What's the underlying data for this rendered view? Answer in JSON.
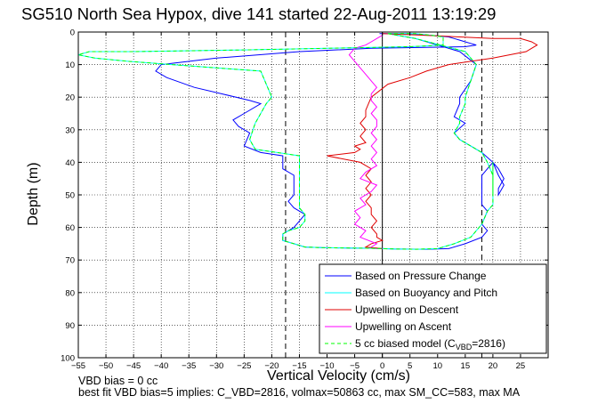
{
  "chart_data": {
    "type": "line",
    "title": "SG510 North Sea Hypox, dive 141 started 22-Aug-2011 13:19:29",
    "xlabel": "Vertical Velocity (cm/s)",
    "ylabel": "Depth (m)",
    "xlim": [
      -55,
      30
    ],
    "ylim": [
      0,
      100
    ],
    "y_reversed": true,
    "grid": true,
    "legend_position": "bottom-right",
    "xticks": [
      "-55",
      "-50",
      "-45",
      "-40",
      "-35",
      "-30",
      "-25",
      "-20",
      "-15",
      "-10",
      "-5",
      "0",
      "5",
      "10",
      "15",
      "20",
      "25"
    ],
    "yticks": [
      "0",
      "10",
      "20",
      "30",
      "40",
      "50",
      "60",
      "70",
      "80",
      "90",
      "100"
    ],
    "reference_lines_x": [
      -17.5,
      0,
      18
    ],
    "series": [
      {
        "name": "Based on Pressure Change",
        "color": "#0000ff",
        "x": [
          -0.5,
          5,
          9,
          12,
          13,
          14,
          15,
          16,
          17,
          15,
          -2,
          -15,
          -30,
          -40,
          -41,
          -39,
          -34,
          -29,
          -24,
          -22,
          -25,
          -27,
          -26,
          -24,
          -25,
          -22,
          -18,
          -18,
          -18,
          -16,
          -16,
          -16,
          -16,
          -17,
          -16,
          -14,
          -15,
          -16,
          -17,
          -18,
          -18,
          -16,
          -14,
          -11,
          -6,
          -2,
          0,
          2,
          8,
          12,
          15,
          18,
          19,
          18,
          19,
          18,
          18,
          18,
          18,
          19,
          20,
          21,
          22,
          21,
          21,
          22,
          21,
          20,
          18,
          16,
          14,
          13,
          15,
          13,
          14,
          14,
          16,
          17,
          14,
          6,
          1
        ],
        "y": [
          0.5,
          0.5,
          1,
          1.5,
          2,
          2.5,
          3,
          3.5,
          4,
          4.5,
          5,
          6,
          8,
          10,
          12,
          14,
          17,
          19,
          21,
          22,
          25,
          27,
          29,
          31,
          35,
          37,
          38,
          40,
          42,
          44,
          46,
          48,
          50,
          52,
          54,
          56,
          58,
          60,
          61,
          62,
          64,
          65,
          66,
          66.2,
          66.3,
          66.4,
          66.5,
          66.6,
          66.7,
          66.5,
          65,
          63,
          61,
          59,
          55,
          53,
          50,
          47,
          44,
          42,
          40,
          42,
          45,
          48,
          50,
          47,
          44,
          40,
          37,
          35,
          33,
          31,
          28,
          26,
          22,
          20,
          15,
          10,
          6,
          2,
          0.5
        ]
      },
      {
        "name": "Based on Buoyancy and Pitch",
        "color": "#00ffff",
        "x": [
          1,
          6,
          9,
          11,
          11,
          11,
          11,
          11,
          11,
          5,
          -10,
          -25,
          -45,
          -53,
          -55,
          -52,
          -46,
          -38,
          -30,
          -22,
          -20,
          -21,
          -22,
          -23,
          -24,
          -23,
          -19,
          -15,
          -15,
          -15,
          -15,
          -15,
          -15,
          -15,
          -15,
          -14,
          -14,
          -15,
          -17,
          -18,
          -18,
          -16,
          -14,
          -11,
          -6,
          -2,
          0,
          2,
          6,
          10,
          13,
          16,
          17,
          18,
          19,
          20,
          20,
          20,
          20,
          20,
          20,
          20,
          20,
          20,
          20,
          20,
          20,
          19,
          18,
          16,
          14,
          13,
          14,
          14,
          15,
          15,
          16,
          17,
          15,
          6,
          1
        ],
        "y": [
          0.5,
          0.5,
          1,
          1.5,
          2,
          2.5,
          3,
          3.5,
          4,
          4.5,
          5,
          5.5,
          6,
          6,
          7,
          8,
          9,
          10,
          11,
          12,
          20,
          22,
          25,
          28,
          33,
          36,
          37,
          38,
          42,
          45,
          47,
          48,
          50,
          52,
          54,
          56,
          58,
          60,
          61,
          62,
          64,
          65,
          66,
          66.2,
          66.3,
          66.4,
          66.5,
          66.6,
          66.7,
          66.5,
          65,
          63,
          61,
          59,
          55,
          53,
          50,
          47,
          44,
          42,
          40,
          42,
          45,
          48,
          50,
          47,
          44,
          40,
          37,
          35,
          33,
          31,
          28,
          26,
          22,
          20,
          15,
          10,
          6,
          2,
          0.5
        ]
      },
      {
        "name": "Upwelling on Descent",
        "color": "#e00000",
        "x": [
          0,
          8,
          14,
          20,
          25,
          27,
          28,
          27,
          26,
          20,
          12,
          8,
          5,
          1,
          -2,
          -3,
          -3,
          -4,
          -3,
          -4,
          -3,
          -5,
          -4,
          -5,
          -10,
          -4,
          -2,
          -3,
          -2,
          -3,
          -2,
          -3,
          -2,
          -2,
          -1,
          -2,
          -1,
          -1,
          0,
          -2,
          -3,
          0
        ],
        "y": [
          0.5,
          1,
          1.5,
          2,
          2,
          3,
          4,
          5,
          6,
          8,
          10,
          12,
          14,
          16,
          20,
          24,
          26,
          28,
          30,
          32,
          34,
          35,
          36,
          37,
          38,
          40,
          42,
          44,
          46,
          48,
          50,
          52,
          54,
          56,
          58,
          60,
          62,
          63,
          64,
          65,
          66,
          66.5
        ]
      },
      {
        "name": "Upwelling on Ascent",
        "color": "#ff00ff",
        "x": [
          -2,
          -1,
          -4,
          -3,
          -5,
          -4,
          -5,
          -3,
          -4,
          -2,
          -1,
          -4,
          -3,
          -1,
          -2,
          -1,
          -2,
          -1,
          -2,
          -1,
          -1,
          -2,
          -1,
          -2,
          -2,
          -1,
          -2,
          -3,
          -4,
          -5,
          -6,
          -5,
          -3,
          -2,
          -1,
          0
        ],
        "y": [
          66,
          65,
          63,
          61,
          59,
          57,
          55,
          53,
          51,
          49,
          47,
          45,
          43,
          41,
          39,
          37,
          35,
          33,
          31,
          29,
          27,
          25,
          23,
          21,
          19,
          17,
          15,
          13,
          11,
          9,
          7,
          5,
          4,
          3,
          2,
          1
        ]
      },
      {
        "name": "5 cc biased model (C_VBD=2816)",
        "legend_label_main": "5 cc biased model (C",
        "legend_label_sub": "VBD",
        "legend_label_tail": "=2816)",
        "color": "#00ff00",
        "dashed": true,
        "x": [
          1,
          6,
          9,
          11,
          11,
          11,
          11,
          11,
          11,
          5,
          -10,
          -25,
          -45,
          -53,
          -55,
          -52,
          -46,
          -38,
          -30,
          -22,
          -20,
          -21,
          -22,
          -23,
          -24,
          -23,
          -19,
          -15,
          -15,
          -15,
          -15,
          -15,
          -15,
          -15,
          -15,
          -14,
          -14,
          -15,
          -17,
          -18,
          -18,
          -16,
          -14,
          -11,
          -6,
          -2,
          0,
          2,
          6,
          10,
          13,
          16,
          17,
          18,
          19,
          20,
          20,
          20,
          20,
          20,
          20,
          20,
          20,
          20,
          20,
          20,
          20,
          19,
          18,
          16,
          14,
          13,
          14,
          14,
          15,
          15,
          16,
          17,
          15,
          6,
          1
        ],
        "y": [
          0.5,
          0.5,
          1,
          1.5,
          2,
          2.5,
          3,
          3.5,
          4,
          4.5,
          5,
          5.5,
          6,
          6,
          7,
          8,
          9,
          10,
          11,
          12,
          20,
          22,
          25,
          28,
          33,
          36,
          37,
          38,
          42,
          45,
          47,
          48,
          50,
          52,
          54,
          56,
          58,
          60,
          61,
          62,
          64,
          65,
          66,
          66.2,
          66.3,
          66.4,
          66.5,
          66.6,
          66.7,
          66.5,
          65,
          63,
          61,
          59,
          55,
          53,
          50,
          47,
          44,
          42,
          40,
          42,
          45,
          48,
          50,
          47,
          44,
          40,
          37,
          35,
          33,
          31,
          28,
          26,
          22,
          20,
          15,
          10,
          6,
          2,
          0.5
        ]
      }
    ],
    "annotations": [
      "VBD bias = 0 cc",
      "best fit VBD bias=5 implies: C_VBD=2816, volmax=50863 cc, max SM_CC=583, max MA"
    ]
  }
}
